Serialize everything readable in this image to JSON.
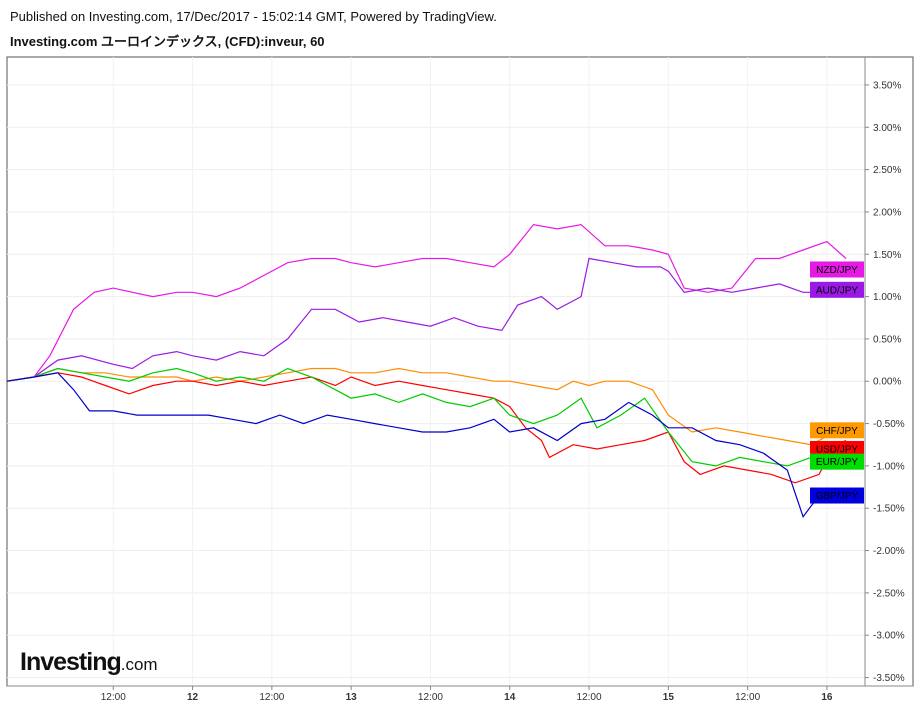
{
  "header": {
    "published": "Published on Investing.com, 17/Dec/2017 - 15:02:14 GMT, Powered by TradingView.",
    "title": "Investing.com ユーロインデックス, (CFD):inveur, 60"
  },
  "watermark": {
    "main": "Investing",
    "suffix": ".com"
  },
  "chart_data": {
    "type": "line",
    "title": "Investing.com ユーロインデックス, (CFD):inveur, 60",
    "x_ticks": [
      {
        "t": 0.5,
        "label": "12:00",
        "bold": false
      },
      {
        "t": 1.0,
        "label": "12",
        "bold": true
      },
      {
        "t": 1.5,
        "label": "12:00",
        "bold": false
      },
      {
        "t": 2.0,
        "label": "13",
        "bold": true
      },
      {
        "t": 2.5,
        "label": "12:00",
        "bold": false
      },
      {
        "t": 3.0,
        "label": "14",
        "bold": true
      },
      {
        "t": 3.5,
        "label": "12:00",
        "bold": false
      },
      {
        "t": 4.0,
        "label": "15",
        "bold": true
      },
      {
        "t": 4.5,
        "label": "12:00",
        "bold": false
      },
      {
        "t": 5.0,
        "label": "16",
        "bold": true
      }
    ],
    "xlim": [
      -0.17,
      5.24
    ],
    "ylim": [
      -3.6,
      3.83
    ],
    "y_ticks": [
      "3.50%",
      "3.00%",
      "2.50%",
      "2.00%",
      "1.50%",
      "1.00%",
      "0.50%",
      "0.00%",
      "-0.50%",
      "-1.00%",
      "-1.50%",
      "-2.00%",
      "-2.50%",
      "-3.00%",
      "-3.50%"
    ],
    "y_tick_values": [
      3.5,
      3.0,
      2.5,
      2.0,
      1.5,
      1.0,
      0.5,
      0.0,
      -0.5,
      -1.0,
      -1.5,
      -2.0,
      -2.5,
      -3.0,
      -3.5
    ],
    "grid": true,
    "series": [
      {
        "name": "NZD/JPY",
        "color": "#e619e6",
        "label_color": "#e619e6",
        "points": [
          [
            -0.17,
            0
          ],
          [
            0.0,
            0.05
          ],
          [
            0.1,
            0.3
          ],
          [
            0.25,
            0.85
          ],
          [
            0.38,
            1.05
          ],
          [
            0.5,
            1.1
          ],
          [
            0.62,
            1.05
          ],
          [
            0.75,
            1.0
          ],
          [
            0.9,
            1.05
          ],
          [
            1.0,
            1.05
          ],
          [
            1.15,
            1.0
          ],
          [
            1.3,
            1.1
          ],
          [
            1.45,
            1.25
          ],
          [
            1.6,
            1.4
          ],
          [
            1.75,
            1.45
          ],
          [
            1.9,
            1.45
          ],
          [
            2.0,
            1.4
          ],
          [
            2.15,
            1.35
          ],
          [
            2.3,
            1.4
          ],
          [
            2.45,
            1.45
          ],
          [
            2.6,
            1.45
          ],
          [
            2.75,
            1.4
          ],
          [
            2.9,
            1.35
          ],
          [
            3.0,
            1.5
          ],
          [
            3.15,
            1.85
          ],
          [
            3.3,
            1.8
          ],
          [
            3.45,
            1.85
          ],
          [
            3.6,
            1.6
          ],
          [
            3.75,
            1.6
          ],
          [
            3.9,
            1.55
          ],
          [
            4.0,
            1.5
          ],
          [
            4.1,
            1.1
          ],
          [
            4.25,
            1.05
          ],
          [
            4.4,
            1.1
          ],
          [
            4.55,
            1.45
          ],
          [
            4.7,
            1.45
          ],
          [
            4.85,
            1.55
          ],
          [
            5.0,
            1.65
          ],
          [
            5.12,
            1.45
          ]
        ],
        "badge_y": 1.32
      },
      {
        "name": "AUD/JPY",
        "color": "#9b19e6",
        "label_color": "#9b19e6",
        "points": [
          [
            -0.17,
            0
          ],
          [
            0.0,
            0.05
          ],
          [
            0.15,
            0.25
          ],
          [
            0.3,
            0.3
          ],
          [
            0.5,
            0.2
          ],
          [
            0.62,
            0.15
          ],
          [
            0.75,
            0.3
          ],
          [
            0.9,
            0.35
          ],
          [
            1.0,
            0.3
          ],
          [
            1.15,
            0.25
          ],
          [
            1.3,
            0.35
          ],
          [
            1.45,
            0.3
          ],
          [
            1.6,
            0.5
          ],
          [
            1.75,
            0.85
          ],
          [
            1.9,
            0.85
          ],
          [
            2.05,
            0.7
          ],
          [
            2.2,
            0.75
          ],
          [
            2.35,
            0.7
          ],
          [
            2.5,
            0.65
          ],
          [
            2.65,
            0.75
          ],
          [
            2.8,
            0.65
          ],
          [
            2.95,
            0.6
          ],
          [
            3.05,
            0.9
          ],
          [
            3.2,
            1.0
          ],
          [
            3.3,
            0.85
          ],
          [
            3.45,
            1.0
          ],
          [
            3.5,
            1.45
          ],
          [
            3.65,
            1.4
          ],
          [
            3.8,
            1.35
          ],
          [
            3.95,
            1.35
          ],
          [
            4.0,
            1.3
          ],
          [
            4.1,
            1.05
          ],
          [
            4.25,
            1.1
          ],
          [
            4.4,
            1.05
          ],
          [
            4.55,
            1.1
          ],
          [
            4.7,
            1.15
          ],
          [
            4.85,
            1.05
          ],
          [
            5.0,
            1.05
          ],
          [
            5.12,
            1.1
          ]
        ],
        "badge_y": 1.08
      },
      {
        "name": "CHF/JPY",
        "color": "#ff8c00",
        "label_color": "#ff9900",
        "points": [
          [
            -0.17,
            0
          ],
          [
            0.0,
            0.05
          ],
          [
            0.15,
            0.15
          ],
          [
            0.3,
            0.1
          ],
          [
            0.45,
            0.1
          ],
          [
            0.6,
            0.05
          ],
          [
            0.75,
            0.05
          ],
          [
            0.9,
            0.05
          ],
          [
            1.0,
            0.0
          ],
          [
            1.15,
            0.05
          ],
          [
            1.3,
            0.0
          ],
          [
            1.45,
            0.05
          ],
          [
            1.6,
            0.1
          ],
          [
            1.75,
            0.15
          ],
          [
            1.9,
            0.15
          ],
          [
            2.0,
            0.1
          ],
          [
            2.15,
            0.1
          ],
          [
            2.3,
            0.15
          ],
          [
            2.45,
            0.1
          ],
          [
            2.6,
            0.1
          ],
          [
            2.75,
            0.05
          ],
          [
            2.9,
            0.0
          ],
          [
            3.0,
            0.0
          ],
          [
            3.15,
            -0.05
          ],
          [
            3.3,
            -0.1
          ],
          [
            3.4,
            0.0
          ],
          [
            3.5,
            -0.05
          ],
          [
            3.6,
            0.0
          ],
          [
            3.75,
            0.0
          ],
          [
            3.9,
            -0.1
          ],
          [
            4.0,
            -0.4
          ],
          [
            4.15,
            -0.6
          ],
          [
            4.3,
            -0.55
          ],
          [
            4.45,
            -0.6
          ],
          [
            4.6,
            -0.65
          ],
          [
            4.75,
            -0.7
          ],
          [
            4.9,
            -0.75
          ],
          [
            5.0,
            -0.65
          ],
          [
            5.12,
            -0.6
          ]
        ],
        "badge_y": -0.58
      },
      {
        "name": "USD/JPY",
        "color": "#ff0000",
        "label_color": "#ff0000",
        "points": [
          [
            -0.17,
            0
          ],
          [
            0.0,
            0.05
          ],
          [
            0.15,
            0.1
          ],
          [
            0.3,
            0.05
          ],
          [
            0.45,
            -0.05
          ],
          [
            0.6,
            -0.15
          ],
          [
            0.75,
            -0.05
          ],
          [
            0.9,
            0.0
          ],
          [
            1.0,
            0.0
          ],
          [
            1.15,
            -0.05
          ],
          [
            1.3,
            0.0
          ],
          [
            1.45,
            -0.05
          ],
          [
            1.6,
            0.0
          ],
          [
            1.75,
            0.05
          ],
          [
            1.9,
            -0.05
          ],
          [
            2.0,
            0.05
          ],
          [
            2.15,
            -0.05
          ],
          [
            2.3,
            0.0
          ],
          [
            2.45,
            -0.05
          ],
          [
            2.6,
            -0.1
          ],
          [
            2.75,
            -0.15
          ],
          [
            2.9,
            -0.2
          ],
          [
            3.0,
            -0.3
          ],
          [
            3.1,
            -0.55
          ],
          [
            3.2,
            -0.7
          ],
          [
            3.25,
            -0.9
          ],
          [
            3.4,
            -0.75
          ],
          [
            3.55,
            -0.8
          ],
          [
            3.7,
            -0.75
          ],
          [
            3.85,
            -0.7
          ],
          [
            4.0,
            -0.6
          ],
          [
            4.1,
            -0.95
          ],
          [
            4.2,
            -1.1
          ],
          [
            4.35,
            -1.0
          ],
          [
            4.5,
            -1.05
          ],
          [
            4.65,
            -1.1
          ],
          [
            4.8,
            -1.2
          ],
          [
            4.95,
            -1.1
          ],
          [
            5.05,
            -0.75
          ],
          [
            5.12,
            -0.7
          ]
        ],
        "badge_y": -0.8
      },
      {
        "name": "EUR/JPY",
        "color": "#00cc00",
        "label_color": "#00dd00",
        "points": [
          [
            -0.17,
            0
          ],
          [
            0.0,
            0.05
          ],
          [
            0.15,
            0.15
          ],
          [
            0.3,
            0.1
          ],
          [
            0.45,
            0.05
          ],
          [
            0.6,
            0.0
          ],
          [
            0.75,
            0.1
          ],
          [
            0.9,
            0.15
          ],
          [
            1.0,
            0.1
          ],
          [
            1.15,
            0.0
          ],
          [
            1.3,
            0.05
          ],
          [
            1.45,
            0.0
          ],
          [
            1.6,
            0.15
          ],
          [
            1.75,
            0.05
          ],
          [
            1.9,
            -0.1
          ],
          [
            2.0,
            -0.2
          ],
          [
            2.15,
            -0.15
          ],
          [
            2.3,
            -0.25
          ],
          [
            2.45,
            -0.15
          ],
          [
            2.6,
            -0.25
          ],
          [
            2.75,
            -0.3
          ],
          [
            2.9,
            -0.2
          ],
          [
            3.0,
            -0.4
          ],
          [
            3.15,
            -0.5
          ],
          [
            3.3,
            -0.4
          ],
          [
            3.45,
            -0.2
          ],
          [
            3.55,
            -0.55
          ],
          [
            3.7,
            -0.4
          ],
          [
            3.85,
            -0.2
          ],
          [
            4.0,
            -0.6
          ],
          [
            4.15,
            -0.95
          ],
          [
            4.3,
            -1.0
          ],
          [
            4.45,
            -0.9
          ],
          [
            4.6,
            -0.95
          ],
          [
            4.75,
            -1.0
          ],
          [
            4.9,
            -0.9
          ],
          [
            5.0,
            -0.85
          ],
          [
            5.12,
            -0.8
          ]
        ],
        "badge_y": -0.95
      },
      {
        "name": "GBP/JPY",
        "color": "#0000cc",
        "label_color": "#0000dd",
        "points": [
          [
            -0.17,
            0
          ],
          [
            0.0,
            0.05
          ],
          [
            0.15,
            0.1
          ],
          [
            0.25,
            -0.1
          ],
          [
            0.35,
            -0.35
          ],
          [
            0.5,
            -0.35
          ],
          [
            0.65,
            -0.4
          ],
          [
            0.8,
            -0.4
          ],
          [
            0.95,
            -0.4
          ],
          [
            1.1,
            -0.4
          ],
          [
            1.25,
            -0.45
          ],
          [
            1.4,
            -0.5
          ],
          [
            1.55,
            -0.4
          ],
          [
            1.7,
            -0.5
          ],
          [
            1.85,
            -0.4
          ],
          [
            2.0,
            -0.45
          ],
          [
            2.15,
            -0.5
          ],
          [
            2.3,
            -0.55
          ],
          [
            2.45,
            -0.6
          ],
          [
            2.6,
            -0.6
          ],
          [
            2.75,
            -0.55
          ],
          [
            2.9,
            -0.45
          ],
          [
            3.0,
            -0.6
          ],
          [
            3.15,
            -0.55
          ],
          [
            3.3,
            -0.7
          ],
          [
            3.45,
            -0.5
          ],
          [
            3.6,
            -0.45
          ],
          [
            3.75,
            -0.25
          ],
          [
            3.9,
            -0.4
          ],
          [
            4.0,
            -0.55
          ],
          [
            4.15,
            -0.55
          ],
          [
            4.3,
            -0.7
          ],
          [
            4.45,
            -0.75
          ],
          [
            4.6,
            -0.85
          ],
          [
            4.75,
            -1.05
          ],
          [
            4.85,
            -1.6
          ],
          [
            4.95,
            -1.35
          ],
          [
            5.12,
            -1.3
          ]
        ],
        "badge_y": -1.35
      }
    ]
  }
}
